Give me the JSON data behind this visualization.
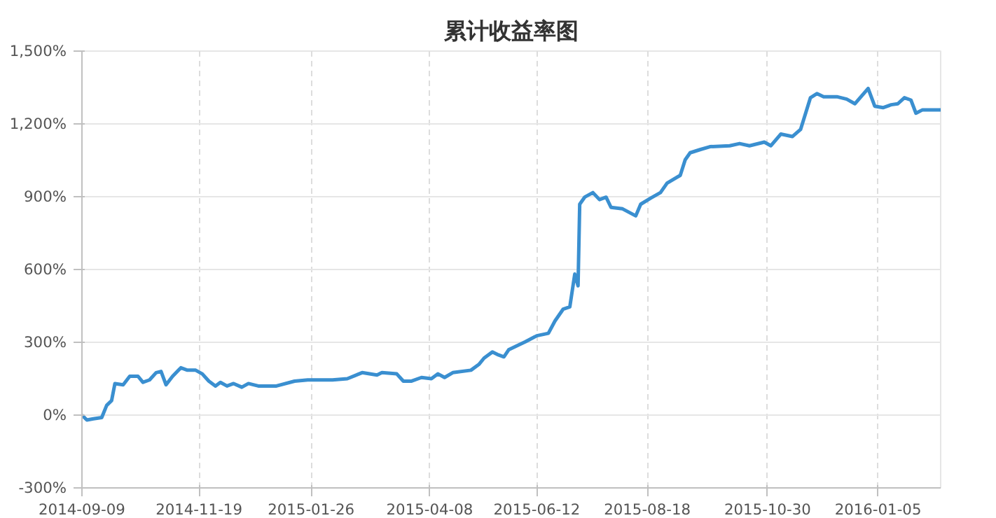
{
  "chart_data": {
    "type": "line",
    "title": "累计收益率图",
    "x": [
      "2014-09-09",
      "2014-09-12",
      "2014-09-16",
      "2014-09-21",
      "2014-09-24",
      "2014-09-27",
      "2014-09-29",
      "2014-10-04",
      "2014-10-08",
      "2014-10-13",
      "2014-10-16",
      "2014-10-20",
      "2014-10-24",
      "2014-10-27",
      "2014-10-30",
      "2014-11-03",
      "2014-11-08",
      "2014-11-12",
      "2014-11-17",
      "2014-11-21",
      "2014-11-25",
      "2014-11-29",
      "2014-12-02",
      "2014-12-06",
      "2014-12-10",
      "2014-12-15",
      "2014-12-19",
      "2014-12-25",
      "2015-01-05",
      "2015-01-16",
      "2015-01-24",
      "2015-02-08",
      "2015-02-17",
      "2015-02-26",
      "2015-03-07",
      "2015-03-10",
      "2015-03-19",
      "2015-03-23",
      "2015-03-28",
      "2015-04-03",
      "2015-04-09",
      "2015-04-13",
      "2015-04-17",
      "2015-04-22",
      "2015-05-03",
      "2015-05-08",
      "2015-05-11",
      "2015-05-16",
      "2015-05-19",
      "2015-05-23",
      "2015-05-26",
      "2015-05-30",
      "2015-06-05",
      "2015-06-12",
      "2015-06-19",
      "2015-06-23",
      "2015-06-28",
      "2015-07-02",
      "2015-07-05",
      "2015-07-07",
      "2015-07-08",
      "2015-07-11",
      "2015-07-16",
      "2015-07-20",
      "2015-07-24",
      "2015-07-27",
      "2015-08-03",
      "2015-08-11",
      "2015-08-14",
      "2015-08-20",
      "2015-08-26",
      "2015-08-30",
      "2015-09-07",
      "2015-09-10",
      "2015-09-13",
      "2015-09-19",
      "2015-09-25",
      "2015-10-07",
      "2015-10-13",
      "2015-10-19",
      "2015-10-28",
      "2015-11-01",
      "2015-11-07",
      "2015-11-14",
      "2015-11-19",
      "2015-11-25",
      "2015-11-29",
      "2015-12-03",
      "2015-12-11",
      "2015-12-17",
      "2015-12-22",
      "2015-12-30",
      "2016-01-03",
      "2016-01-08",
      "2016-01-13",
      "2016-01-17",
      "2016-01-21",
      "2016-01-25",
      "2016-01-28",
      "2016-02-01",
      "2016-02-12"
    ],
    "series": [
      {
        "color": "#3a8fd0",
        "values": [
          0,
          -20,
          -15,
          -10,
          40,
          60,
          130,
          125,
          160,
          160,
          135,
          145,
          175,
          180,
          125,
          160,
          195,
          185,
          185,
          170,
          140,
          120,
          135,
          120,
          130,
          115,
          130,
          120,
          120,
          140,
          145,
          145,
          150,
          175,
          165,
          175,
          170,
          140,
          140,
          155,
          150,
          170,
          155,
          175,
          185,
          210,
          235,
          260,
          250,
          240,
          270,
          283,
          302,
          327,
          337,
          388,
          437,
          446,
          581,
          533,
          869,
          898,
          917,
          888,
          898,
          856,
          850,
          821,
          869,
          894,
          917,
          956,
          988,
          1052,
          1081,
          1094,
          1106,
          1110,
          1119,
          1110,
          1125,
          1110,
          1158,
          1148,
          1177,
          1308,
          1325,
          1312,
          1312,
          1302,
          1283,
          1346,
          1273,
          1267,
          1279,
          1283,
          1308,
          1298,
          1244,
          1258,
          1258
        ]
      }
    ],
    "xlim": [
      "2014-09-09",
      "2016-02-12"
    ],
    "xticks": [
      {
        "value": "2014-09-09",
        "label": "2014-09-09"
      },
      {
        "value": "2014-11-19",
        "label": "2014-11-19"
      },
      {
        "value": "2015-01-26",
        "label": "2015-01-26"
      },
      {
        "value": "2015-04-08",
        "label": "2015-04-08"
      },
      {
        "value": "2015-06-12",
        "label": "2015-06-12"
      },
      {
        "value": "2015-08-18",
        "label": "2015-08-18"
      },
      {
        "value": "2015-10-30",
        "label": "2015-10-30"
      },
      {
        "value": "2016-01-05",
        "label": "2016-01-05"
      }
    ],
    "ylim": [
      -300,
      1500
    ],
    "yticks": [
      {
        "value": -300,
        "label": "-300%"
      },
      {
        "value": 0,
        "label": "0%"
      },
      {
        "value": 300,
        "label": "300%"
      },
      {
        "value": 600,
        "label": "600%"
      },
      {
        "value": 900,
        "label": "900%"
      },
      {
        "value": 1200,
        "label": "1,200%"
      },
      {
        "value": 1500,
        "label": "1,500%"
      }
    ],
    "grid": true,
    "line_style": "solid",
    "marker": "none"
  }
}
